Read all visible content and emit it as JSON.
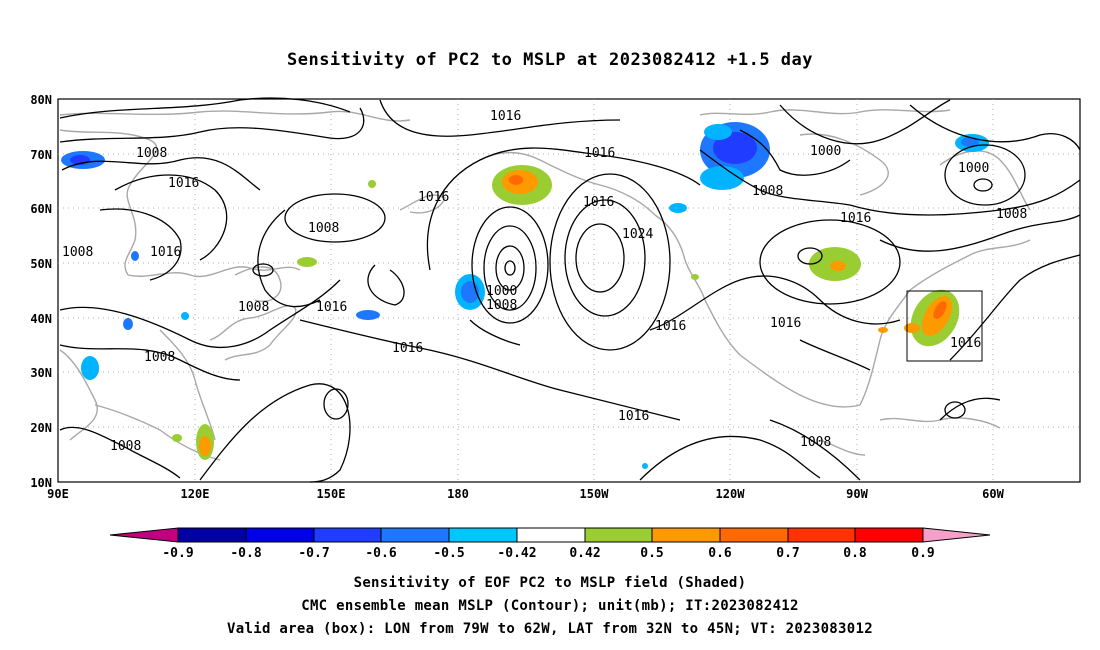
{
  "title": "Sensitivity of PC2 to MSLP at 2023082412 +1.5 day",
  "map": {
    "lat_labels": [
      "80N",
      "70N",
      "60N",
      "50N",
      "40N",
      "30N",
      "20N",
      "10N"
    ],
    "lon_labels": [
      "90E",
      "120E",
      "150E",
      "180",
      "150W",
      "120W",
      "90W",
      "60W"
    ],
    "contour_labels": [
      "1008",
      "1016",
      "1008",
      "1016",
      "1016",
      "1008",
      "1008",
      "1016",
      "1008",
      "1016",
      "1016",
      "1016",
      "1000",
      "1008",
      "1008",
      "1016",
      "1024",
      "1016",
      "1016",
      "1008",
      "1000",
      "1008",
      "1016",
      "1000",
      "1016",
      "1008",
      "1016"
    ]
  },
  "colorbar": {
    "labels": [
      "-0.9",
      "-0.8",
      "-0.7",
      "-0.6",
      "-0.5",
      "-0.42",
      "0.42",
      "0.5",
      "0.6",
      "0.7",
      "0.8",
      "0.9"
    ],
    "colors": [
      "#c0007f",
      "#0000a5",
      "#0000e6",
      "#1f3cff",
      "#1e78ff",
      "#00b4ff",
      "#00d7ff",
      "#ffffff",
      "#9acd32",
      "#ff9900",
      "#ff6a00",
      "#ff3300",
      "#ff0000",
      "#f5a0c8"
    ]
  },
  "footer": {
    "line1": "Sensitivity of EOF PC2 to MSLP field (Shaded)",
    "line2": "CMC ensemble mean MSLP (Contour); unit(mb); IT:2023082412",
    "line3": "Valid area (box): LON from 79W to 62W, LAT from 32N to 45N; VT: 2023083012"
  }
}
